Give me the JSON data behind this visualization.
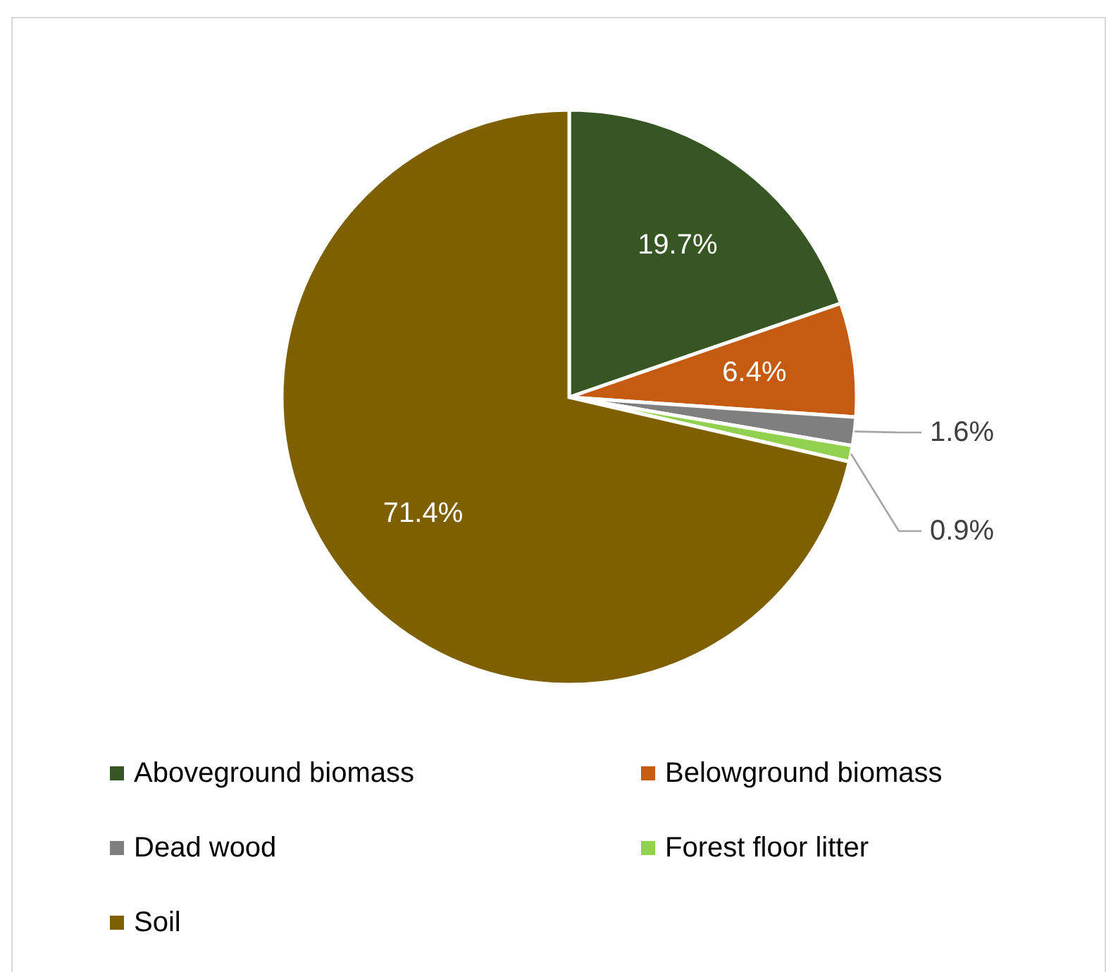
{
  "chart_data": {
    "type": "pie",
    "categories": [
      "Aboveground biomass",
      "Belowground biomass",
      "Dead wood",
      "Forest floor litter",
      "Soil"
    ],
    "values": [
      19.7,
      6.4,
      1.6,
      0.9,
      71.4
    ],
    "colors": [
      "#375623",
      "#c55a11",
      "#7f7f7f",
      "#92d050",
      "#7f6000"
    ],
    "value_labels": [
      "19.7%",
      "6.4%",
      "1.6%",
      "0.9%",
      "71.4%"
    ],
    "legend": "bottom"
  }
}
